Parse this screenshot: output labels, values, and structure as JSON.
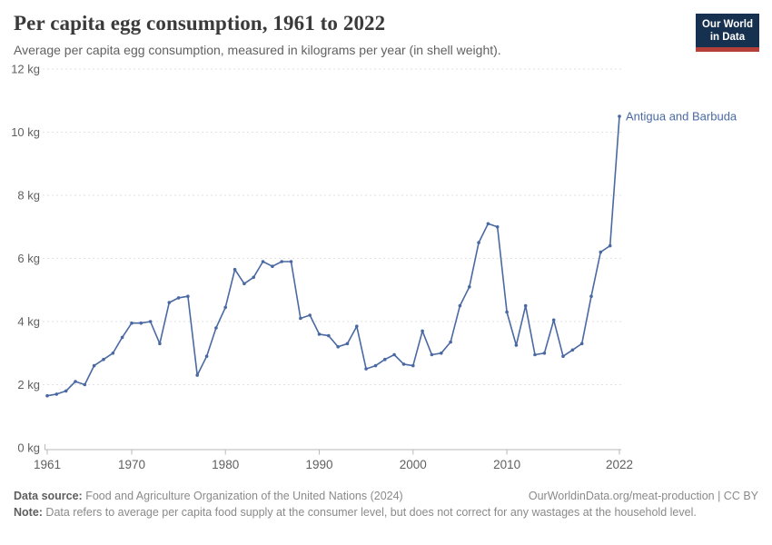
{
  "header": {
    "title": "Per capita egg consumption, 1961 to 2022",
    "subtitle": "Average per capita egg consumption, measured in kilograms per year (in shell weight)."
  },
  "logo": {
    "line1": "Our World",
    "line2": "in Data",
    "bg_color": "#16304f",
    "accent_color": "#b5403a"
  },
  "chart_data": {
    "type": "line",
    "title": "Per capita egg consumption, 1961 to 2022",
    "xlabel": "",
    "ylabel": "kilograms per year",
    "xlim": [
      1961,
      2022
    ],
    "ylim": [
      0,
      12
    ],
    "grid": true,
    "legend_position": "end-of-line-label",
    "line_color": "#4a69a2",
    "grid_color": "#e2e2e2",
    "axis_color": "#b9b9b9",
    "x": [
      1961,
      1962,
      1963,
      1964,
      1965,
      1966,
      1967,
      1968,
      1969,
      1970,
      1971,
      1972,
      1973,
      1974,
      1975,
      1976,
      1977,
      1978,
      1979,
      1980,
      1981,
      1982,
      1983,
      1984,
      1985,
      1986,
      1987,
      1988,
      1989,
      1990,
      1991,
      1992,
      1993,
      1994,
      1995,
      1996,
      1997,
      1998,
      1999,
      2000,
      2001,
      2002,
      2003,
      2004,
      2005,
      2006,
      2007,
      2008,
      2009,
      2010,
      2011,
      2012,
      2013,
      2014,
      2015,
      2016,
      2017,
      2018,
      2019,
      2020,
      2021,
      2022
    ],
    "series": [
      {
        "name": "Antigua and Barbuda",
        "values": [
          1.65,
          1.7,
          1.8,
          2.1,
          2.0,
          2.6,
          2.8,
          3.0,
          3.5,
          3.95,
          3.95,
          4.0,
          3.3,
          4.6,
          4.75,
          4.8,
          2.3,
          2.9,
          3.8,
          4.45,
          5.65,
          5.2,
          5.4,
          5.9,
          5.75,
          5.9,
          5.9,
          4.1,
          4.2,
          3.6,
          3.55,
          3.2,
          3.3,
          3.85,
          2.5,
          2.6,
          2.8,
          2.95,
          2.65,
          2.6,
          3.7,
          2.95,
          3.0,
          3.35,
          4.5,
          5.1,
          6.5,
          7.1,
          7.0,
          4.3,
          3.25,
          4.5,
          2.95,
          3.0,
          4.05,
          2.9,
          3.1,
          3.3,
          4.8,
          6.2,
          6.4,
          10.5
        ]
      }
    ],
    "x_ticks": [
      1961,
      1970,
      1980,
      1990,
      2000,
      2010,
      2022
    ],
    "y_ticks": [
      {
        "value": 0,
        "label": "0 kg"
      },
      {
        "value": 2,
        "label": "2 kg"
      },
      {
        "value": 4,
        "label": "4 kg"
      },
      {
        "value": 6,
        "label": "6 kg"
      },
      {
        "value": 8,
        "label": "8 kg"
      },
      {
        "value": 10,
        "label": "10 kg"
      },
      {
        "value": 12,
        "label": "12 kg"
      }
    ]
  },
  "footer": {
    "source_label": "Data source:",
    "source_text": " Food and Agriculture Organization of the United Nations (2024)",
    "link_text": "OurWorldinData.org/meat-production | CC BY",
    "note_label": "Note:",
    "note_text": " Data refers to average per capita food supply at the consumer level, but does not correct for any wastages at the household level."
  }
}
